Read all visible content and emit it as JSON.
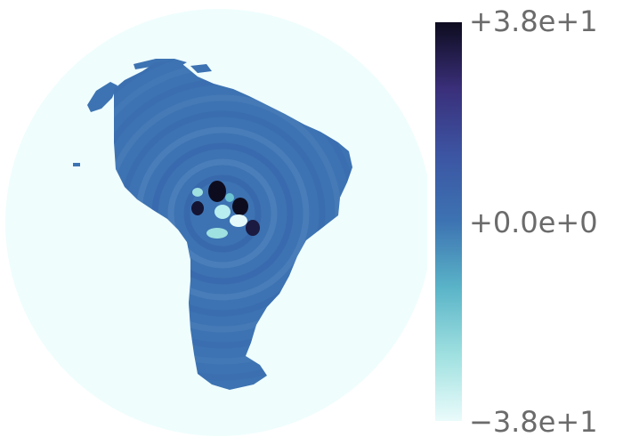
{
  "map": {
    "projection": "orthographic",
    "region": "South America",
    "ocean_color": "#effdfd",
    "land_color": "#3d73b2"
  },
  "colorbar": {
    "colormap": [
      "#eafbfb",
      "#9fe0e0",
      "#5ab4c8",
      "#3d73b2",
      "#3c55a3",
      "#3a2f7a",
      "#0d0c1f"
    ],
    "ticks": [
      {
        "key": "max",
        "label": "+3.8e+1"
      },
      {
        "key": "mid",
        "label": "+0.0e+0"
      },
      {
        "key": "min",
        "label": "−3.8e+1"
      }
    ],
    "vmin": -38,
    "vmax": 38
  }
}
